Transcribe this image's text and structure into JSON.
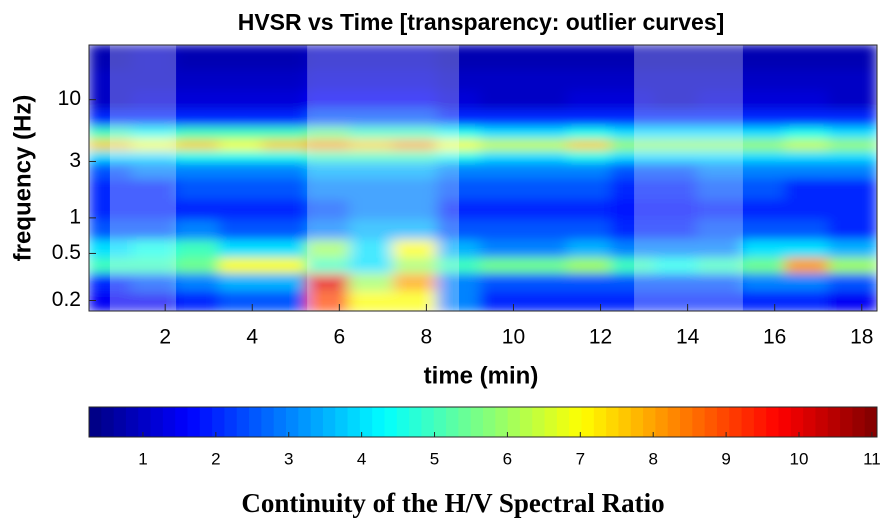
{
  "chart_data": {
    "type": "heatmap",
    "title": "HVSR vs Time [transparency: outlier curves]",
    "x_label": "time (min)",
    "y_label": "frequency (Hz)",
    "xlim": [
      0.25,
      18.35
    ],
    "xticks": [
      2,
      4,
      6,
      8,
      10,
      12,
      14,
      16,
      18
    ],
    "ylim": [
      0.163,
      29
    ],
    "yticks": [
      0.2,
      0.5,
      1,
      3,
      10
    ],
    "y_scale": "log",
    "shaded_intervals": [
      [
        0.73,
        2.25
      ],
      [
        5.26,
        8.75
      ],
      [
        12.77,
        15.27
      ]
    ],
    "x": [
      0.75,
      1.75,
      2.75,
      3.75,
      4.75,
      5.75,
      6.75,
      7.75,
      8.75,
      9.75,
      10.75,
      11.75,
      12.75,
      13.75,
      14.75,
      15.75,
      16.75,
      17.75
    ],
    "y": [
      0.2,
      0.3,
      0.4,
      0.55,
      0.8,
      1.2,
      1.8,
      2.7,
      3.4,
      4.2,
      5.2,
      7,
      10,
      15,
      22
    ],
    "z": [
      [
        1.5,
        1.5,
        2,
        2.5,
        2.5,
        9,
        7,
        7,
        3,
        2,
        2,
        2,
        2,
        2,
        2,
        2,
        2,
        1.5
      ],
      [
        2,
        2.5,
        3,
        3.5,
        3.5,
        10,
        6,
        8,
        3,
        2.5,
        2.5,
        2.5,
        2.5,
        2.5,
        2.5,
        3,
        3,
        2.5
      ],
      [
        5,
        5,
        5.5,
        7,
        7,
        5,
        4,
        6,
        5,
        5.5,
        5.5,
        6,
        5,
        4.5,
        5,
        5.5,
        8,
        6
      ],
      [
        4,
        4.5,
        5,
        4,
        4,
        6,
        4,
        7,
        3.5,
        3,
        3,
        3.5,
        3,
        3,
        3,
        4,
        4,
        3.5
      ],
      [
        2.5,
        2.5,
        3,
        2.5,
        2.5,
        3,
        3.5,
        3.5,
        2.5,
        2.5,
        2.5,
        2.5,
        2,
        2,
        2.5,
        2.5,
        2.5,
        2
      ],
      [
        2,
        2,
        2,
        2,
        2,
        2.5,
        3,
        3,
        2,
        2,
        2,
        2,
        1.8,
        1.8,
        2,
        2,
        2,
        2
      ],
      [
        2,
        2,
        2.5,
        2.5,
        2.5,
        3,
        3,
        3,
        2.5,
        2.5,
        2.5,
        2.5,
        2,
        2,
        2.5,
        2.5,
        2,
        2
      ],
      [
        2.5,
        3,
        3,
        3,
        3,
        3.5,
        3.5,
        3.5,
        3,
        3,
        3,
        3,
        2.5,
        2.5,
        3,
        3,
        3,
        3
      ],
      [
        4,
        4,
        4.5,
        4.5,
        4.5,
        5,
        5,
        5,
        4.5,
        4,
        4,
        4.5,
        4,
        4,
        4,
        4,
        4,
        4
      ],
      [
        7.5,
        7,
        7.5,
        7,
        7.5,
        8,
        7.5,
        8,
        7,
        6.5,
        6.5,
        7.5,
        6,
        6,
        6,
        6,
        6.5,
        6
      ],
      [
        5,
        4.5,
        5,
        5,
        5,
        5.5,
        5,
        5,
        4.5,
        4,
        4,
        4.5,
        4,
        4,
        4,
        4,
        4.5,
        4
      ],
      [
        2,
        2,
        2,
        2,
        2,
        2.5,
        2.5,
        2.5,
        2,
        2,
        2,
        2,
        2,
        2,
        2,
        2,
        2,
        2
      ],
      [
        1,
        1.2,
        1.2,
        1.2,
        1.2,
        1.5,
        1.5,
        1.5,
        1.2,
        1,
        1,
        1.2,
        1.2,
        1,
        1.2,
        1.2,
        1.2,
        1
      ],
      [
        1,
        1,
        1,
        1,
        1,
        1.2,
        1.2,
        1.2,
        1,
        1,
        1,
        1,
        1,
        1,
        1,
        1,
        1,
        1
      ],
      [
        0.8,
        1,
        0.8,
        0.8,
        0.8,
        1,
        1,
        1,
        0.8,
        0.8,
        0.8,
        0.8,
        0.8,
        0.8,
        0.8,
        0.8,
        0.8,
        0.8
      ]
    ],
    "colormap": "jet",
    "colorbar": {
      "label": "Continuity of the H/V Spectral Ratio",
      "clim": [
        0.26,
        11.07
      ],
      "ticks": [
        1,
        2,
        3,
        4,
        5,
        6,
        7,
        8,
        9,
        10,
        11
      ]
    }
  }
}
